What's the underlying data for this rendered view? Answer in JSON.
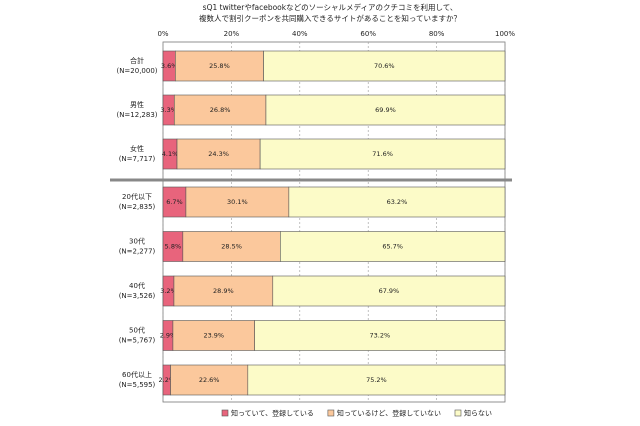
{
  "chart_data": {
    "type": "stacked-bar-horizontal",
    "title_lines": [
      "sQ1 twitterやfacebookなどのソーシャルメディアのクチコミを利用して、",
      "複数人で割引クーポンを共同購入できるサイトがあることを知っていますか？"
    ],
    "categories": [
      "合計",
      "男性",
      "女性",
      "20代以下",
      "30代",
      "40代",
      "50代",
      "60代以上"
    ],
    "category_n": [
      "(N=20,000)",
      "(N=12,283)",
      "(N=7,717)",
      "(N=2,835)",
      "(N=2,277)",
      "(N=3,526)",
      "(N=5,767)",
      "(N=5,595)"
    ],
    "series": [
      {
        "name": "知っていて、登録している",
        "color": "#e8647c",
        "values": [
          3.6,
          3.3,
          4.1,
          6.7,
          5.8,
          3.2,
          2.9,
          2.2
        ],
        "value_labels": [
          "3.6%",
          "3.3%",
          "4.1%",
          "6.7%",
          "5.8%",
          "3.2%",
          "2.9%",
          "2.2%"
        ]
      },
      {
        "name": "知っているけど、登録していない",
        "color": "#fbc89c",
        "values": [
          25.8,
          26.8,
          24.3,
          30.1,
          28.5,
          28.9,
          23.9,
          22.6
        ],
        "value_labels": [
          "25.8%",
          "26.8%",
          "24.3%",
          "30.1%",
          "28.5%",
          "28.9%",
          "23.9%",
          "22.6%"
        ]
      },
      {
        "name": "知らない",
        "color": "#fcfbc8",
        "values": [
          70.6,
          69.9,
          71.6,
          63.2,
          65.7,
          67.9,
          73.2,
          75.2
        ],
        "value_labels": [
          "70.6%",
          "69.9%",
          "71.6%",
          "63.2%",
          "65.7%",
          "67.9%",
          "73.2%",
          "75.2%"
        ]
      }
    ],
    "xlim": [
      0,
      100
    ],
    "xticks": [
      {
        "value": 0,
        "label": "0%"
      },
      {
        "value": 20,
        "label": "20%"
      },
      {
        "value": 40,
        "label": "40%"
      },
      {
        "value": 60,
        "label": "60%"
      },
      {
        "value": 80,
        "label": "80%"
      },
      {
        "value": 100,
        "label": "100%"
      }
    ],
    "grid": true,
    "legend": "bottom"
  }
}
